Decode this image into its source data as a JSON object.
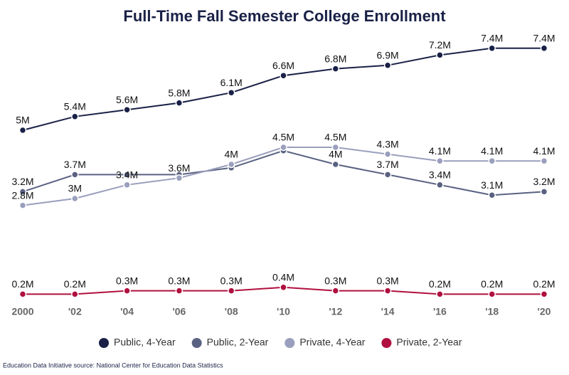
{
  "chart_data": {
    "type": "line",
    "title": "Full-Time Fall Semester College Enrollment",
    "source": "Education Data Initiative source: National Center for Education Data Statistics",
    "categories": [
      "2000",
      "'02",
      "'04",
      "'06",
      "'08",
      "'10",
      "'12",
      "'14",
      "'16",
      "'18",
      "'20"
    ],
    "series": [
      {
        "name": "Public, 4-Year",
        "color": "#1a2147",
        "values": [
          5,
          5.4,
          5.6,
          5.8,
          6.1,
          6.6,
          6.8,
          6.9,
          7.2,
          7.4,
          7.4
        ],
        "value_labels": [
          "5M",
          "5.4M",
          "5.6M",
          "5.8M",
          "6.1M",
          "6.6M",
          "6.8M",
          "6.9M",
          "7.2M",
          "7.4M",
          "7.4M"
        ]
      },
      {
        "name": "Public, 2-Year",
        "color": "#5a6282",
        "values": [
          3.2,
          3.7,
          3.7,
          3.7,
          3.9,
          4.4,
          4,
          3.7,
          3.4,
          3.1,
          3.2
        ],
        "value_labels": [
          "3.2M",
          "3.7M",
          null,
          null,
          null,
          null,
          "4M",
          "3.7M",
          "3.4M",
          "3.1M",
          "3.2M"
        ]
      },
      {
        "name": "Private, 4-Year",
        "color": "#9a9fbd",
        "values": [
          2.8,
          3,
          3.4,
          3.6,
          4,
          4.5,
          4.5,
          4.3,
          4.1,
          4.1,
          4.1
        ],
        "value_labels": [
          "2.8M",
          "3M",
          "3.4M",
          "3.6M",
          "4M",
          "4.5M",
          "4.5M",
          "4.3M",
          "4.1M",
          "4.1M",
          "4.1M"
        ]
      },
      {
        "name": "Private, 2-Year",
        "color": "#b0103f",
        "values": [
          0.2,
          0.2,
          0.3,
          0.3,
          0.3,
          0.4,
          0.3,
          0.3,
          0.2,
          0.2,
          0.2
        ],
        "value_labels": [
          "0.2M",
          "0.2M",
          "0.3M",
          "0.3M",
          "0.3M",
          "0.4M",
          "0.3M",
          "0.3M",
          "0.2M",
          "0.2M",
          "0.2M"
        ]
      }
    ]
  }
}
